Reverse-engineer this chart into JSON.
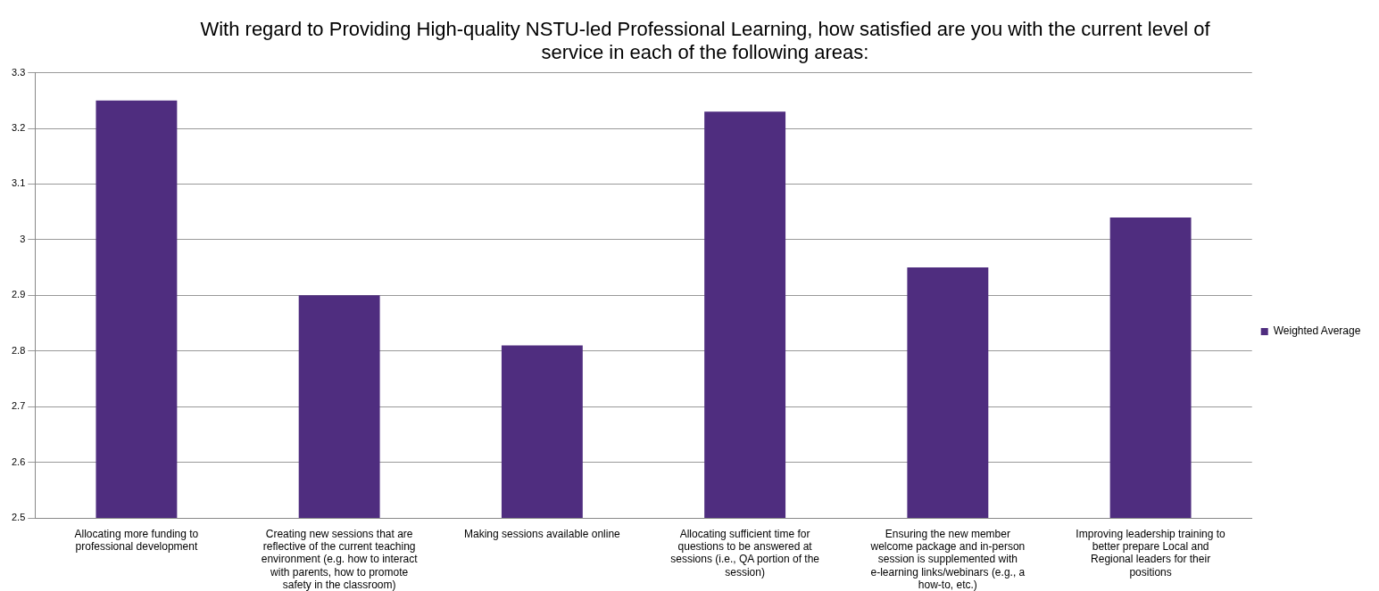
{
  "chart_data": {
    "type": "bar",
    "title": "With regard to Providing High-quality NSTU-led Professional Learning, how satisfied are you with the current level of service in each of the following areas:",
    "categories": [
      "Allocating more funding to professional development",
      "Creating new sessions that are reflective of the current teaching environment (e.g. how to interact with parents, how to promote safety in the classroom)",
      "Making sessions available online",
      "Allocating sufficient time for questions to be answered at sessions (i.e., QA portion of the session)",
      "Ensuring the new member welcome package and in-person session is supplemented with e-learning links/webinars (e.g., a how-to, etc.)",
      "Improving leadership training to better prepare Local and Regional leaders for their positions"
    ],
    "series": [
      {
        "name": "Weighted Average",
        "color": "#4f2d7f",
        "values": [
          3.25,
          2.9,
          2.81,
          3.23,
          2.95,
          3.04
        ]
      }
    ],
    "ylim": [
      2.5,
      3.3
    ],
    "yticks": [
      2.5,
      2.6,
      2.7,
      2.8,
      2.9,
      3,
      3.1,
      3.2,
      3.3
    ],
    "grid": "y",
    "legend": "right"
  }
}
